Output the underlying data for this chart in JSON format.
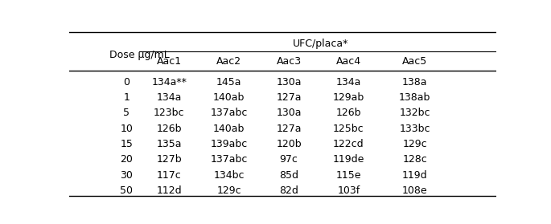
{
  "col_header_row1": "UFC/placa*",
  "col_header_row2": [
    "Aac1",
    "Aac2",
    "Aac3",
    "Aac4",
    "Aac5"
  ],
  "row_header_label": "Dose μg/mL",
  "doses": [
    "0",
    "1",
    "5",
    "10",
    "15",
    "20",
    "30",
    "50"
  ],
  "data": [
    [
      "134a**",
      "145a",
      "130a",
      "134a",
      "138a"
    ],
    [
      "134a",
      "140ab",
      "127a",
      "129ab",
      "138ab"
    ],
    [
      "123bc",
      "137abc",
      "130a",
      "126b",
      "132bc"
    ],
    [
      "126b",
      "140ab",
      "127a",
      "125bc",
      "133bc"
    ],
    [
      "135a",
      "139abc",
      "120b",
      "122cd",
      "129c"
    ],
    [
      "127b",
      "137abc",
      "97c",
      "119de",
      "128c"
    ],
    [
      "117c",
      "134bc",
      "85d",
      "115e",
      "119d"
    ],
    [
      "112d",
      "129c",
      "82d",
      "103f",
      "108e"
    ]
  ],
  "bg_color": "#ffffff",
  "text_color": "#000000",
  "line_color": "#000000",
  "font_size": 9.0
}
